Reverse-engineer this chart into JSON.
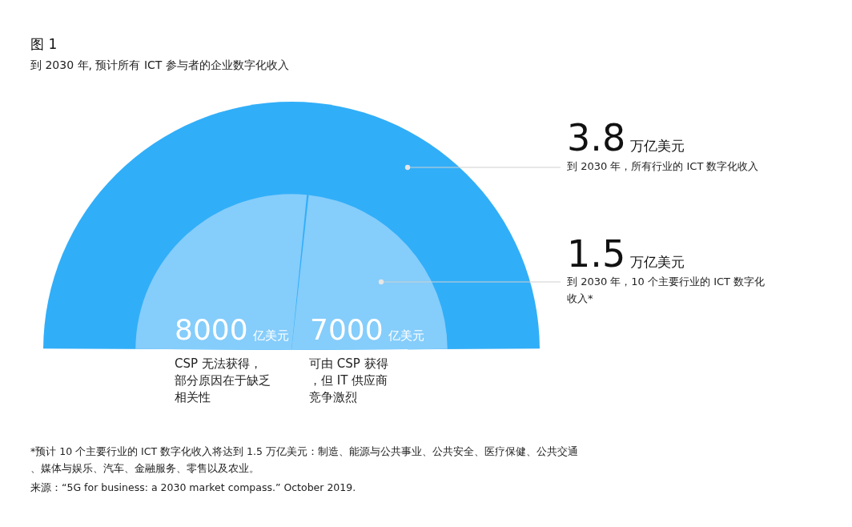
{
  "chart_data": {
    "type": "other",
    "title": "图 1",
    "subtitle": "到 2030 年, 预计所有 ICT 参与者的企业数字化收入",
    "categories": [
      "到 2030 年，所有行业的 ICT 数字化收入",
      "到 2030 年，10 个主要行业的 ICT 数字化收入*",
      "CSP 无法获得，部分原因在于缺乏相关性",
      "可由 CSP 获得，但 IT 供应商竞争激烈"
    ],
    "values": [
      3.8,
      1.5,
      8000,
      7000
    ],
    "value_labels": [
      "3.8万亿美元",
      "1.5万亿美元",
      "8000亿美元",
      "7000亿美元"
    ],
    "colors": [
      "#31aef8",
      null,
      "#85cdfb",
      "#85cdfb"
    ],
    "annotations": [
      "*预计 10 个主要行业的 ICT 数字化收入将达到 1.5 万亿美元：制造、能源与公共事业、公共安全、医疗保健、公共交通、媒体与娱乐、汽车、金融服务、零售以及农业。",
      "来源：“5G for business: a 2030 market compass.” October 2019."
    ]
  }
}
